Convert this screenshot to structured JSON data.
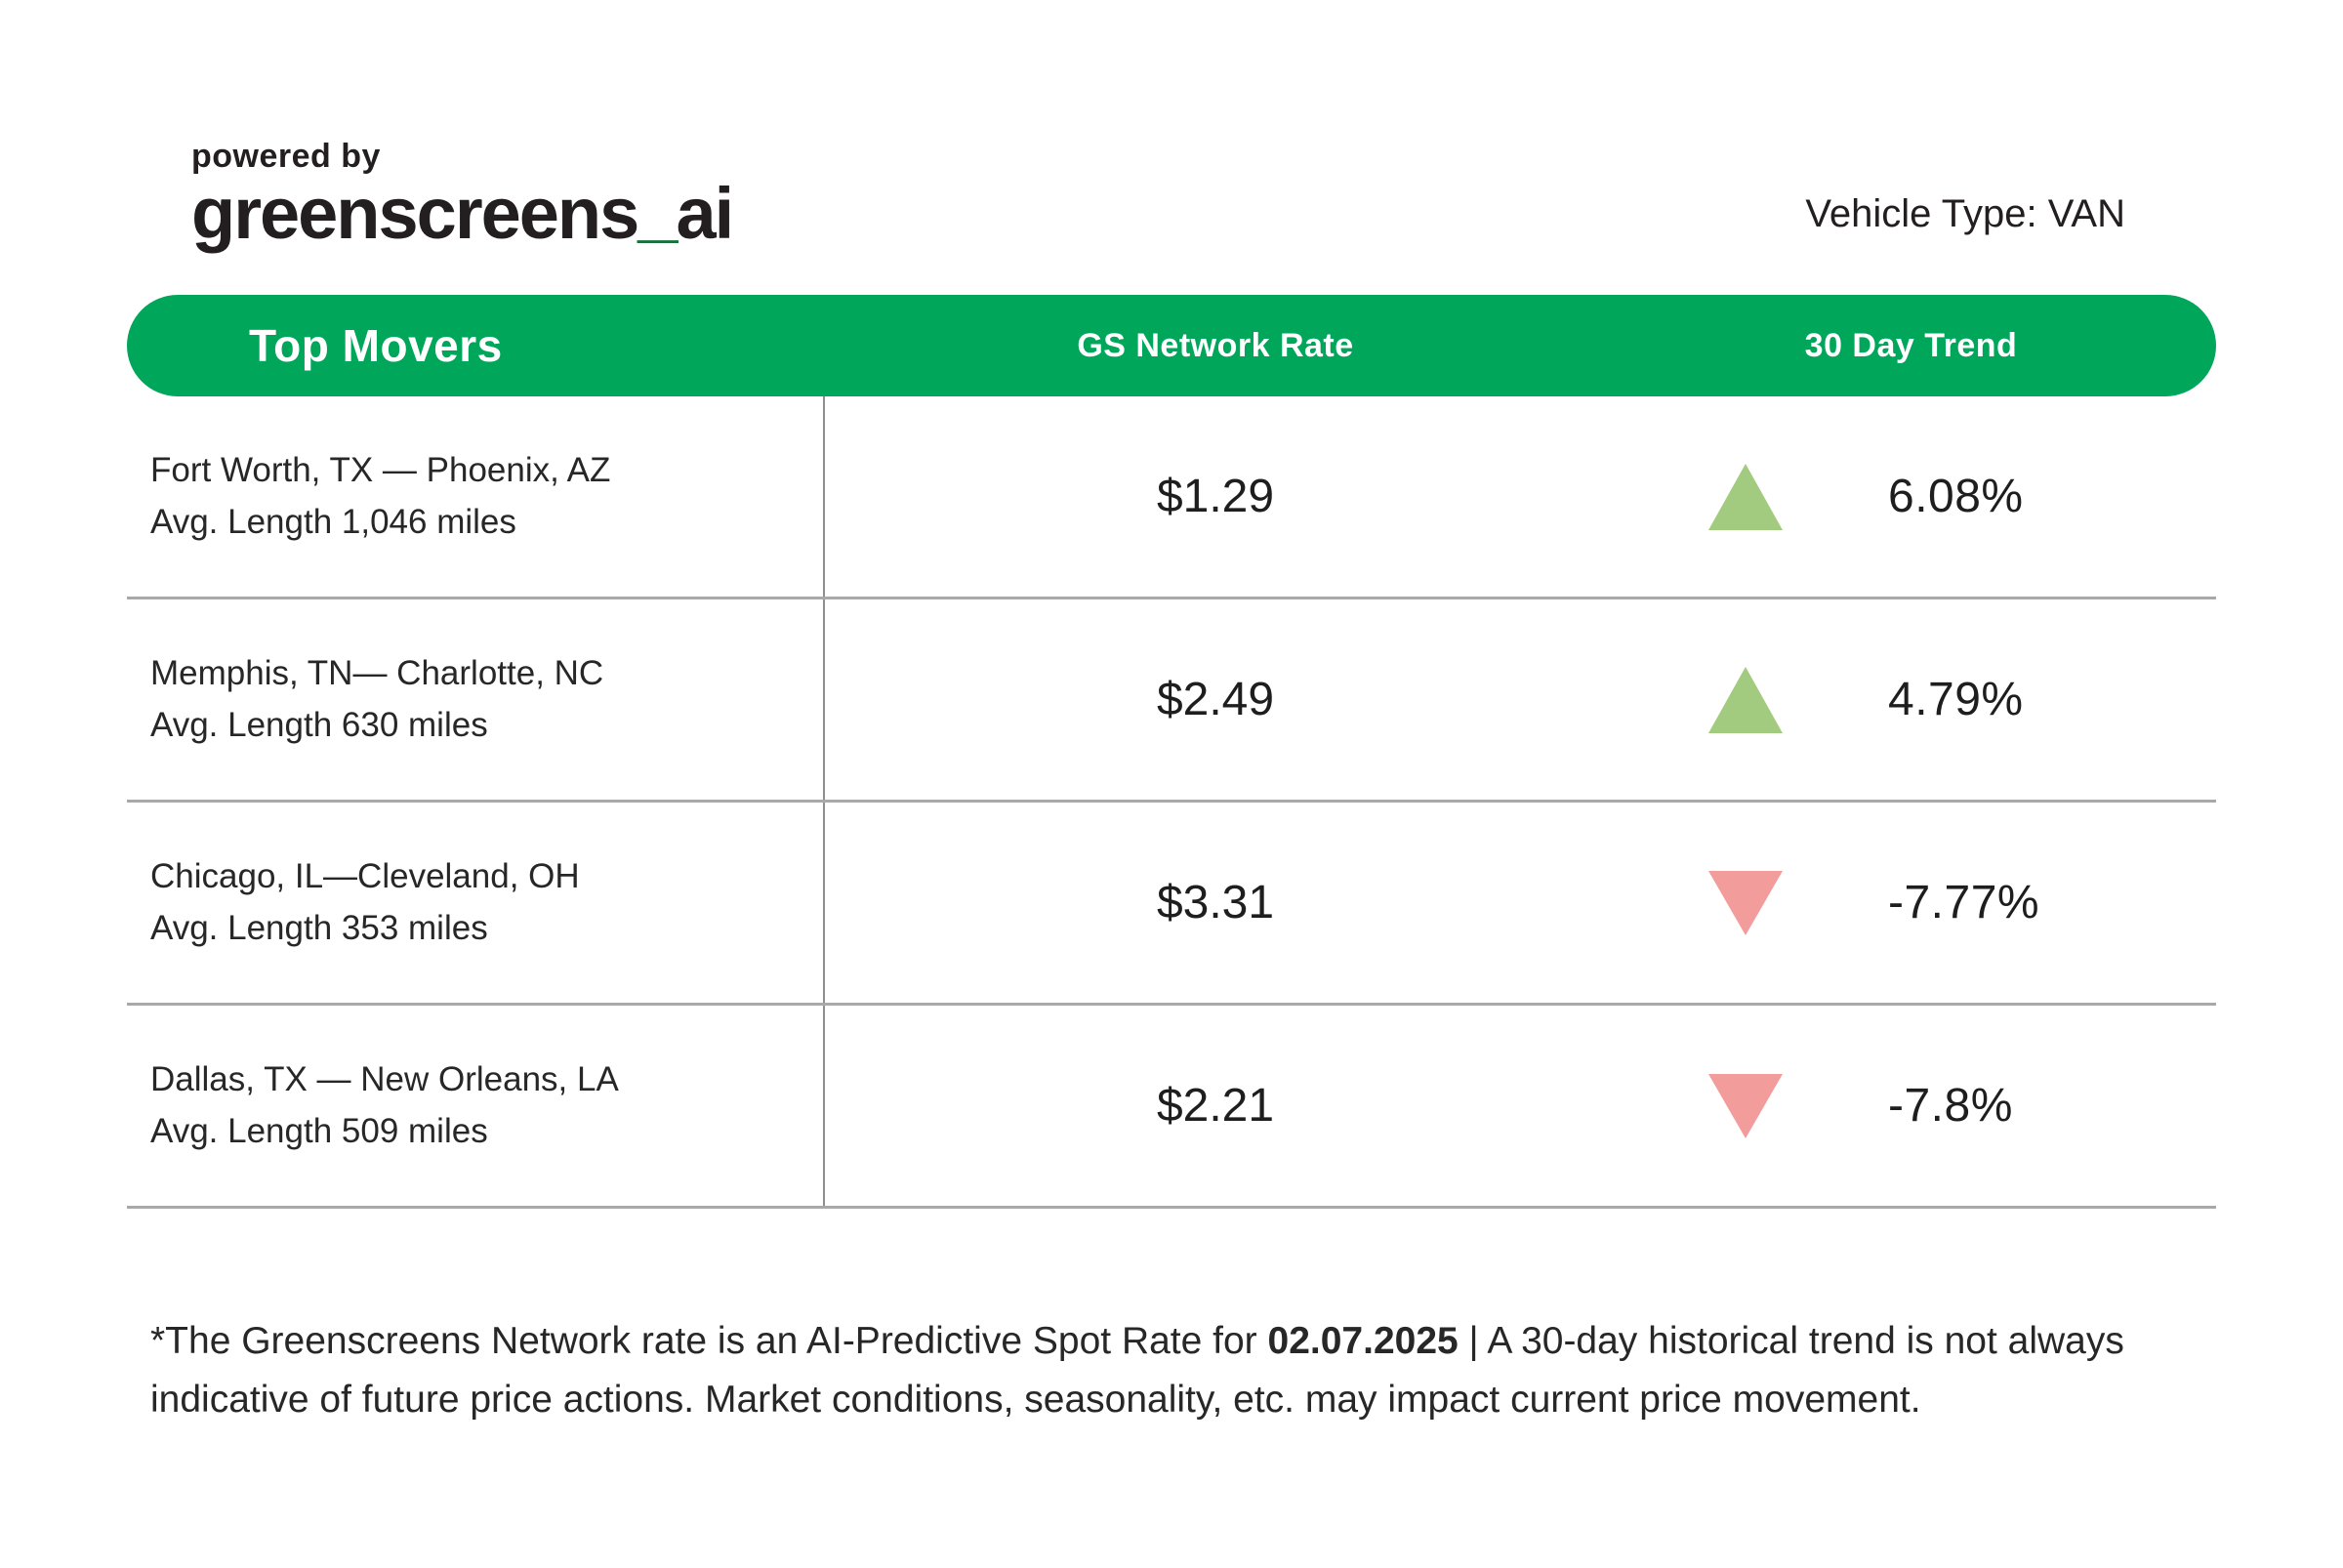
{
  "header": {
    "powered_by": "powered by",
    "brand_part1": "greenscreens",
    "brand_underscore": "_",
    "brand_part2": "ai",
    "vehicle_type": "Vehicle Type: VAN"
  },
  "table": {
    "title": "Top Movers",
    "columns": {
      "rate": "GS Network Rate",
      "trend": "30 Day Trend"
    },
    "rows": [
      {
        "lane": "Fort Worth, TX — Phoenix, AZ",
        "avg_length": "Avg. Length 1,046 miles",
        "rate": "$1.29",
        "trend_direction": "up",
        "trend_value": "6.08%"
      },
      {
        "lane": "Memphis, TN— Charlotte, NC",
        "avg_length": "Avg. Length 630 miles",
        "rate": "$2.49",
        "trend_direction": "up",
        "trend_value": "4.79%"
      },
      {
        "lane": "Chicago, IL—Cleveland, OH",
        "avg_length": "Avg. Length 353 miles",
        "rate": "$3.31",
        "trend_direction": "down",
        "trend_value": "-7.77%"
      },
      {
        "lane": "Dallas, TX — New Orleans, LA",
        "avg_length": "Avg. Length 509 miles",
        "rate": "$2.21",
        "trend_direction": "down",
        "trend_value": "-7.8%"
      }
    ]
  },
  "footer": {
    "note_part1": "*The Greenscreens Network rate is an AI-Predictive Spot Rate for ",
    "note_date": "02.07.2025",
    "note_part2": " | A 30-day historical trend is not always indicative of future price actions. Market conditions, seasonality, etc. may impact current price movement."
  },
  "colors": {
    "accent_green": "#00a65a",
    "underscore_green": "#15703b",
    "up_green": "#a2cb7f",
    "down_pink": "#f29c9b",
    "divider_h": "#a9a9a9",
    "divider_v": "#8f8f8f",
    "text": "#231f20"
  },
  "chart_data": {
    "type": "table",
    "title": "Top Movers",
    "subtitle": "Vehicle Type: VAN",
    "columns": [
      "Top Movers",
      "GS Network Rate",
      "30 Day Trend"
    ],
    "rows": [
      {
        "lane": "Fort Worth, TX — Phoenix, AZ",
        "avg_length_miles": 1046,
        "gs_network_rate_usd": 1.29,
        "trend_30day_pct": 6.08,
        "direction": "up"
      },
      {
        "lane": "Memphis, TN — Charlotte, NC",
        "avg_length_miles": 630,
        "gs_network_rate_usd": 2.49,
        "trend_30day_pct": 4.79,
        "direction": "up"
      },
      {
        "lane": "Chicago, IL — Cleveland, OH",
        "avg_length_miles": 353,
        "gs_network_rate_usd": 3.31,
        "trend_30day_pct": -7.77,
        "direction": "down"
      },
      {
        "lane": "Dallas, TX — New Orleans, LA",
        "avg_length_miles": 509,
        "gs_network_rate_usd": 2.21,
        "trend_30day_pct": -7.8,
        "direction": "down"
      }
    ],
    "rate_date": "02.07.2025"
  }
}
